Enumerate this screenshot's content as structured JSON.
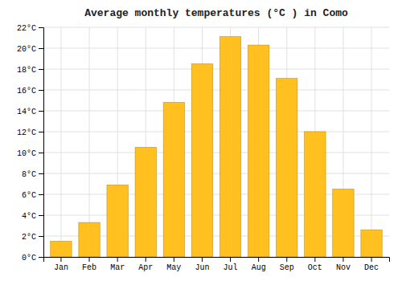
{
  "chart_data": {
    "type": "bar",
    "title": "Average monthly temperatures (°C ) in Como",
    "categories": [
      "Jan",
      "Feb",
      "Mar",
      "Apr",
      "May",
      "Jun",
      "Jul",
      "Aug",
      "Sep",
      "Oct",
      "Nov",
      "Dec"
    ],
    "values": [
      1.5,
      3.3,
      6.9,
      10.5,
      14.8,
      18.5,
      21.1,
      20.3,
      17.1,
      12.0,
      6.5,
      2.6
    ],
    "color": "#FFC020",
    "ylim": [
      0,
      22
    ],
    "yticks": [
      {
        "value": 0,
        "label": "0°C"
      },
      {
        "value": 2,
        "label": "2°C"
      },
      {
        "value": 4,
        "label": "4°C"
      },
      {
        "value": 6,
        "label": "6°C"
      },
      {
        "value": 8,
        "label": "8°C"
      },
      {
        "value": 10,
        "label": "10°C"
      },
      {
        "value": 12,
        "label": "12°C"
      },
      {
        "value": 14,
        "label": "14°C"
      },
      {
        "value": 16,
        "label": "16°C"
      },
      {
        "value": 18,
        "label": "18°C"
      },
      {
        "value": 20,
        "label": "20°C"
      },
      {
        "value": 22,
        "label": "22°C"
      }
    ],
    "grid": true
  }
}
